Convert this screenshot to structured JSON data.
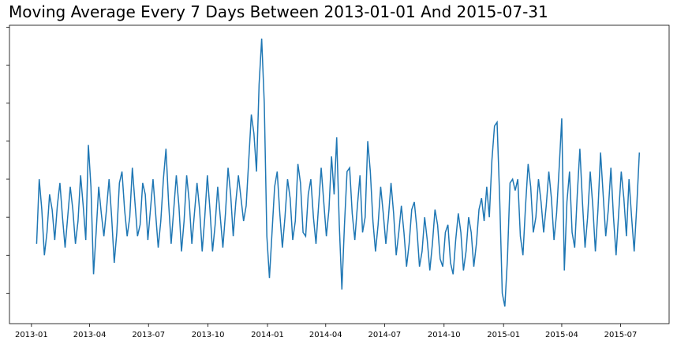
{
  "chart_data": {
    "type": "line",
    "title": "Moving Average Every 7 Days Between 2013-01-01 And 2015-07-31",
    "x": [
      8,
      12,
      16,
      20,
      24,
      28,
      32,
      36,
      40,
      44,
      48,
      52,
      56,
      60,
      64,
      68,
      72,
      76,
      80,
      84,
      88,
      92,
      96,
      100,
      104,
      108,
      112,
      116,
      120,
      124,
      128,
      132,
      136,
      140,
      144,
      148,
      152,
      156,
      160,
      164,
      168,
      172,
      176,
      180,
      184,
      188,
      192,
      196,
      200,
      204,
      208,
      212,
      216,
      220,
      224,
      228,
      232,
      236,
      240,
      244,
      248,
      252,
      256,
      260,
      264,
      268,
      272,
      276,
      280,
      284,
      288,
      292,
      296,
      300,
      304,
      308,
      312,
      316,
      320,
      324,
      328,
      332,
      336,
      340,
      344,
      348,
      352,
      356,
      360,
      364,
      368,
      372,
      376,
      380,
      384,
      388,
      392,
      396,
      400,
      404,
      408,
      412,
      416,
      420,
      424,
      428,
      432,
      436,
      440,
      444,
      448,
      452,
      456,
      460,
      464,
      468,
      472,
      476,
      480,
      484,
      488,
      492,
      496,
      500,
      504,
      508,
      512,
      516,
      520,
      524,
      528,
      532,
      536,
      540,
      544,
      548,
      552,
      556,
      560,
      564,
      568,
      572,
      576,
      580,
      584,
      588,
      592,
      596,
      600,
      604,
      608,
      612,
      616,
      620,
      624,
      628,
      632,
      636,
      640,
      644,
      648,
      652,
      656,
      660,
      664,
      668,
      672,
      676,
      680,
      684,
      688,
      692,
      696,
      700,
      704,
      708,
      712,
      716,
      720,
      724,
      728,
      732,
      736,
      740,
      744,
      748,
      752,
      756,
      760,
      764,
      768,
      772,
      776,
      780,
      784,
      788,
      792,
      796,
      800,
      804,
      808,
      812,
      816,
      820,
      824,
      828,
      832,
      836,
      840,
      844,
      848,
      852,
      856,
      860,
      864,
      868,
      872,
      876,
      880,
      884,
      888,
      892,
      896,
      900,
      904,
      908,
      912,
      916,
      920,
      924,
      928,
      932,
      936,
      940
    ],
    "series": [
      {
        "color": "#1f77b4",
        "values": [
          2.3,
          4.0,
          3.2,
          2.0,
          2.6,
          3.6,
          3.2,
          2.4,
          3.3,
          3.9,
          3.0,
          2.2,
          3.0,
          3.8,
          3.2,
          2.3,
          2.9,
          4.1,
          3.3,
          2.4,
          4.9,
          3.8,
          1.5,
          2.6,
          3.8,
          3.1,
          2.5,
          3.2,
          4.0,
          3.0,
          1.8,
          2.6,
          3.9,
          4.2,
          3.2,
          2.5,
          3.0,
          4.3,
          3.4,
          2.5,
          2.8,
          3.9,
          3.6,
          2.4,
          3.2,
          4.0,
          3.1,
          2.2,
          2.9,
          4.0,
          4.8,
          3.4,
          2.3,
          3.2,
          4.1,
          3.3,
          2.1,
          2.9,
          4.1,
          3.4,
          2.3,
          3.1,
          3.9,
          3.2,
          2.1,
          3.0,
          4.1,
          3.2,
          2.1,
          2.8,
          3.8,
          3.0,
          2.2,
          3.1,
          4.3,
          3.6,
          2.5,
          3.4,
          4.1,
          3.5,
          2.9,
          3.3,
          4.5,
          5.7,
          5.2,
          4.2,
          6.5,
          7.7,
          6.0,
          2.5,
          1.4,
          2.6,
          3.8,
          4.2,
          3.1,
          2.2,
          3.0,
          4.0,
          3.5,
          2.4,
          2.9,
          4.4,
          3.9,
          2.6,
          2.5,
          3.6,
          4.0,
          3.0,
          2.3,
          3.3,
          4.3,
          3.4,
          2.5,
          3.2,
          4.6,
          3.6,
          5.1,
          2.8,
          1.1,
          2.8,
          4.2,
          4.3,
          3.1,
          2.4,
          3.3,
          4.1,
          2.6,
          3.0,
          5.0,
          4.2,
          2.9,
          2.1,
          2.8,
          3.8,
          3.1,
          2.3,
          3.0,
          3.9,
          3.1,
          2.0,
          2.6,
          3.3,
          2.6,
          1.7,
          2.3,
          3.2,
          3.4,
          2.7,
          1.7,
          2.1,
          3.0,
          2.4,
          1.6,
          2.3,
          3.2,
          2.8,
          1.9,
          1.7,
          2.6,
          2.8,
          1.8,
          1.5,
          2.4,
          3.1,
          2.6,
          1.6,
          2.1,
          3.0,
          2.6,
          1.7,
          2.3,
          3.2,
          3.5,
          2.9,
          3.8,
          3.0,
          4.5,
          5.4,
          5.5,
          3.5,
          1.0,
          0.65,
          1.9,
          3.9,
          4.0,
          3.7,
          4.0,
          2.5,
          2.0,
          3.3,
          4.4,
          3.8,
          2.6,
          3.0,
          4.0,
          3.4,
          2.6,
          3.3,
          4.2,
          3.5,
          2.4,
          3.1,
          4.3,
          5.6,
          1.6,
          3.4,
          4.2,
          2.6,
          2.2,
          3.6,
          4.8,
          3.4,
          2.2,
          3.0,
          4.2,
          3.3,
          2.1,
          3.2,
          4.7,
          3.6,
          2.5,
          3.2,
          4.3,
          3.0,
          2.0,
          3.1,
          4.2,
          3.5,
          2.5,
          4.0,
          3.0,
          2.1,
          3.3,
          4.7
        ]
      }
    ],
    "xlim": [
      -34,
      986
    ],
    "xticks": [
      {
        "value": 0,
        "label": "2013-01"
      },
      {
        "value": 90,
        "label": "2013-04"
      },
      {
        "value": 181,
        "label": "2013-07"
      },
      {
        "value": 273,
        "label": "2013-10"
      },
      {
        "value": 365,
        "label": "2014-01"
      },
      {
        "value": 455,
        "label": "2014-04"
      },
      {
        "value": 546,
        "label": "2014-07"
      },
      {
        "value": 638,
        "label": "2014-10"
      },
      {
        "value": 730,
        "label": "2015-01"
      },
      {
        "value": 820,
        "label": "2015-04"
      },
      {
        "value": 911,
        "label": "2015-07"
      }
    ],
    "ylim": [
      0.2,
      8.05
    ],
    "yticks": [
      1,
      2,
      3,
      4,
      5,
      6,
      7,
      8
    ]
  }
}
